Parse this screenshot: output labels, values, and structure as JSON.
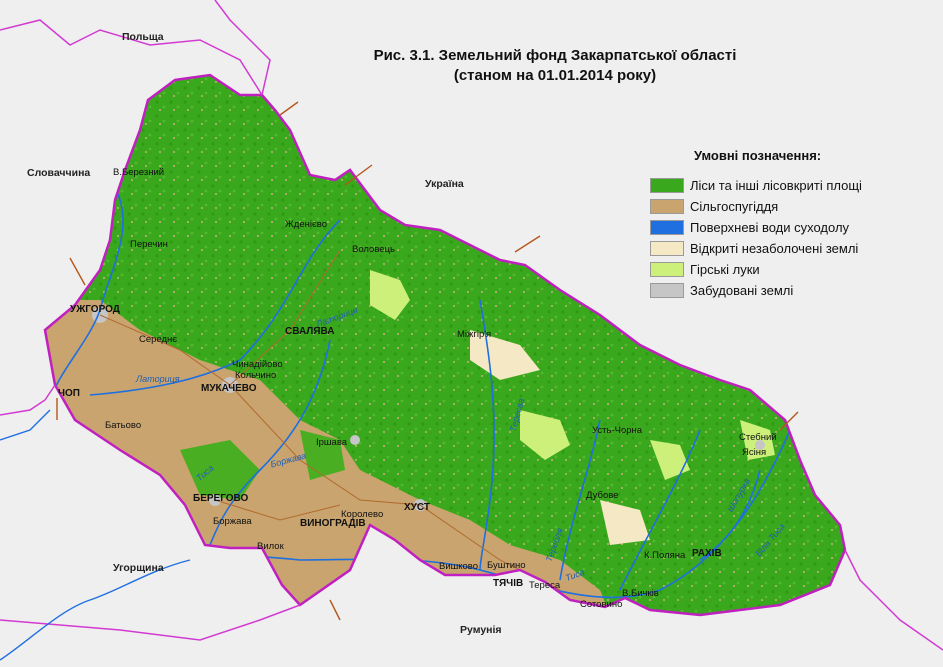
{
  "title": {
    "line1": "Рис. 3.1. Земельний фонд Закарпатської області",
    "line2": "(станом на 01.01.2014 року)"
  },
  "legend": {
    "title": "Умовні позначення:",
    "items": [
      {
        "label": "Ліси та інші лісовкриті площі",
        "color": "#3aa81c"
      },
      {
        "label": "Сільгоспугіддя",
        "color": "#c9a46e"
      },
      {
        "label": "Поверхневі води суходолу",
        "color": "#1f6fe0"
      },
      {
        "label": "Відкриті незаболочені землі",
        "color": "#f5e8c4"
      },
      {
        "label": "Гірські луки",
        "color": "#cdf07a"
      },
      {
        "label": "Забудовані землі",
        "color": "#c6c6c6"
      }
    ]
  },
  "countries": {
    "poland": "Польща",
    "slovakia": "Словаччина",
    "ukraine": "Україна",
    "hungary": "Угорщина",
    "romania": "Румунія"
  },
  "cities": {
    "uzhhorod": "УЖГОРОД",
    "mukachevo": "МУКАЧЕВО",
    "svaliava": "СВАЛЯВА",
    "berehovo": "БЕРЕГОВО",
    "vynohradiv": "ВИНОГРАДІВ",
    "khust": "ХУСТ",
    "tiachiv": "ТЯЧІВ",
    "rakhiv": "РАХІВ",
    "chop": "ЧОП"
  },
  "towns": {
    "velykyi_bereznyi": "В.Березний",
    "perechyn": "Перечин",
    "zhdenievo": "Жденієво",
    "volovets": "Воловець",
    "mizhhiria": "Міжгір'я",
    "seredne": "Середнє",
    "chynadiievo": "Чинадійово",
    "kolchyno": "Кольчино",
    "batovo": "Батьово",
    "irshava": "Іршава",
    "borzhava": "Боржава",
    "vylok": "Вилок",
    "korolevo": "Королево",
    "vyshkovo": "Вишково",
    "bushtyno": "Буштино",
    "teresva": "Тереса",
    "solotvyno": "Сотовино",
    "v_bychkiv": "В.Бичків",
    "k_poliana": "К.Поляна",
    "dubove": "Дубове",
    "ust_chorna": "Усть-Чорна",
    "stebnyi": "Стебний",
    "yasinia": "Ясіня"
  },
  "rivers": {
    "latorytsia_w": "Латориця",
    "latorytsia_n": "Латориця",
    "borzhava": "Боржава",
    "tysa_w": "Тиса",
    "tysa_s": "Тиса",
    "teresva": "Теребля",
    "tereblia": "Тересва",
    "chorna_tysa": "Біла Тиса",
    "shopurka": "Шопурка",
    "rika": "Ріка",
    "uzh": "Уж"
  }
}
